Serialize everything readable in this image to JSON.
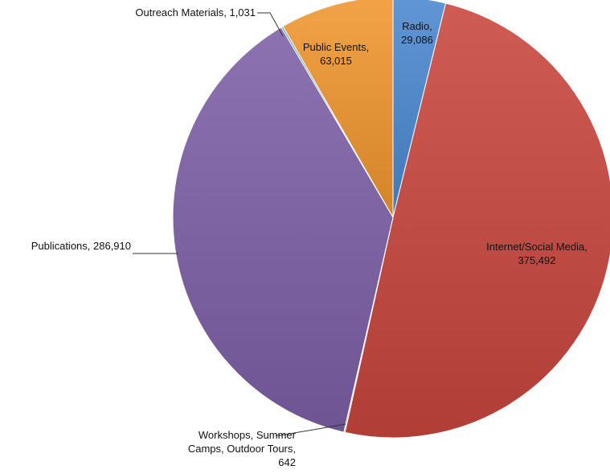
{
  "chart_data": {
    "type": "pie",
    "title": "",
    "slices": [
      {
        "name": "Radio",
        "value": 29086,
        "label_lines": [
          "Radio,",
          "29,086"
        ],
        "color": "#4a88d0"
      },
      {
        "name": "Internet/Social Media",
        "value": 375492,
        "label_lines": [
          "Internet/Social Media,",
          "375,492"
        ],
        "color": "#c9463d"
      },
      {
        "name": "Workshops, Summer Camps, Outdoor Tours",
        "value": 642,
        "label_lines": [
          "Workshops, Summer",
          "Camps, Outdoor Tours,",
          "642"
        ],
        "color": "#8aaa3c"
      },
      {
        "name": "Publications",
        "value": 286910,
        "label_lines": [
          "Publications, 286,910"
        ],
        "color": "#7d5fa6"
      },
      {
        "name": "Outreach Materials",
        "value": 1031,
        "label_lines": [
          "Outreach Materials, 1,031"
        ],
        "color": "#3a9db5"
      },
      {
        "name": "Public Events",
        "value": 63015,
        "label_lines": [
          "Public Events,",
          "63,015"
        ],
        "color": "#f1962e"
      }
    ],
    "start_angle_deg": 0,
    "direction": "clockwise",
    "legend": "none"
  }
}
